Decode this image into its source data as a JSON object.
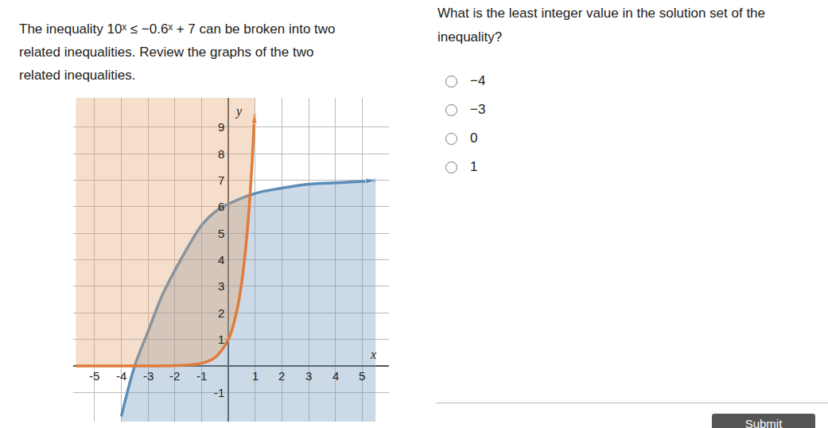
{
  "prompt_lines": [
    "The inequality 10ˣ ≤ −0.6ˣ + 7 can be broken into two",
    "related inequalities. Review the graphs of the two",
    "related inequalities."
  ],
  "question_lines": [
    "What is the least integer value in the solution set of the",
    "inequality?"
  ],
  "options": [
    "−4",
    "−3",
    "0",
    "1"
  ],
  "button": "Submit",
  "chart_data": {
    "type": "line",
    "x_label": "x",
    "y_label": "y",
    "xlim": [
      -5.8,
      6
    ],
    "ylim": [
      -2.1,
      10.1
    ],
    "xticks": [
      -5,
      -4,
      -3,
      -2,
      -1,
      1,
      2,
      3,
      4,
      5
    ],
    "yticks": [
      -1,
      1,
      2,
      3,
      4,
      5,
      6,
      7,
      8,
      9
    ],
    "grid": true,
    "series": [
      {
        "color": "#5b8db8",
        "line_style": "solid",
        "marker": "arrow",
        "x": [
          -4,
          -3.5,
          -3,
          -2.5,
          -2,
          -1.5,
          -1,
          -0.5,
          0,
          1,
          2,
          3,
          4,
          5,
          5.5
        ],
        "values": [
          -1.9,
          0,
          1.3,
          2.6,
          3.6,
          4.5,
          5.3,
          5.8,
          6.1,
          6.5,
          6.7,
          6.85,
          6.9,
          6.95,
          7.0
        ]
      },
      {
        "color": "#e07b39",
        "line_style": "solid",
        "marker": "arrow",
        "x": [
          -5.7,
          -4,
          -3,
          -2,
          -1,
          -0.5,
          0,
          0.3,
          0.5,
          0.6,
          0.7,
          0.8,
          0.9,
          0.98
        ],
        "values": [
          0,
          0,
          0,
          0.01,
          0.1,
          0.32,
          1,
          2,
          3.16,
          3.98,
          5.0,
          6.3,
          7.9,
          9.5
        ]
      }
    ]
  }
}
